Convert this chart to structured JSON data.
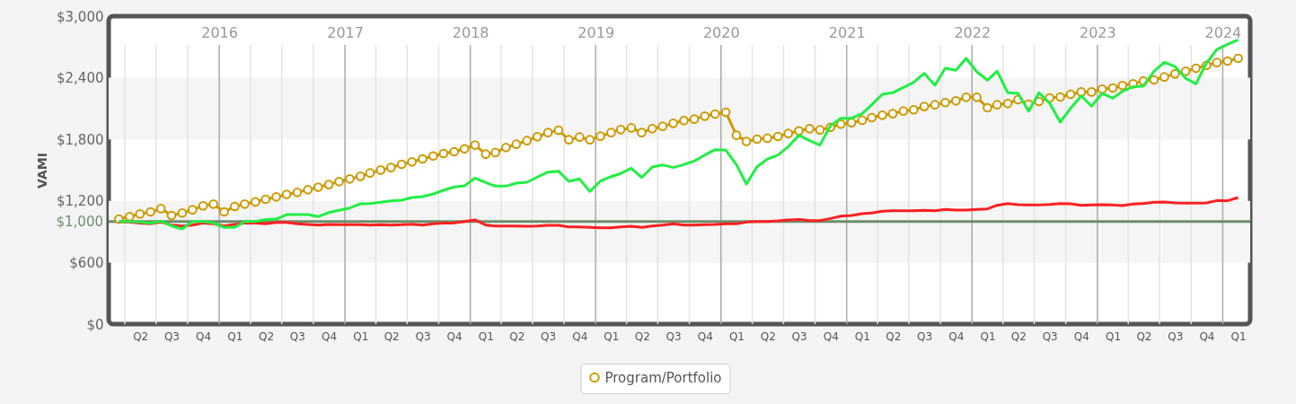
{
  "chart_data": {
    "type": "line",
    "ylabel": "VAMI",
    "legend": "bottom",
    "grid": "x",
    "xlim": [
      "2015-02-13",
      "2024-03-21"
    ],
    "x2lim": [
      "2015-02-13",
      "2024-03-21"
    ],
    "ylim": [
      0,
      3000
    ],
    "yticks": [
      {
        "value": 0,
        "label": "$0"
      },
      {
        "value": 600,
        "label": "$600"
      },
      {
        "value": 1200,
        "label": "$1,200"
      },
      {
        "value": 1800,
        "label": "$1,800"
      },
      {
        "value": 2400,
        "label": "$2,400"
      },
      {
        "value": 3000,
        "label": "$3,000"
      }
    ],
    "xticks": [
      {
        "value": "2015-04-01",
        "label": null
      },
      {
        "value": "2015-07-01",
        "label": null
      },
      {
        "value": "2015-10-01",
        "label": null
      },
      {
        "value": "2016-04-01",
        "label": null
      },
      {
        "value": "2016-07-01",
        "label": null
      },
      {
        "value": "2016-10-01",
        "label": null
      },
      {
        "value": "2017-04-01",
        "label": null
      },
      {
        "value": "2017-07-01",
        "label": null
      },
      {
        "value": "2017-10-01",
        "label": null
      },
      {
        "value": "2018-04-01",
        "label": null
      },
      {
        "value": "2018-07-01",
        "label": null
      },
      {
        "value": "2018-10-01",
        "label": null
      },
      {
        "value": "2019-04-01",
        "label": null
      },
      {
        "value": "2019-07-01",
        "label": null
      },
      {
        "value": "2019-10-01",
        "label": null
      },
      {
        "value": "2020-04-01",
        "label": null
      },
      {
        "value": "2020-07-01",
        "label": null
      },
      {
        "value": "2020-10-01",
        "label": null
      },
      {
        "value": "2021-04-01",
        "label": null
      },
      {
        "value": "2021-07-01",
        "label": null
      },
      {
        "value": "2021-10-01",
        "label": null
      },
      {
        "value": "2022-04-01",
        "label": null
      },
      {
        "value": "2022-07-01",
        "label": null
      },
      {
        "value": "2022-10-01",
        "label": null
      },
      {
        "value": "2023-04-01",
        "label": null
      },
      {
        "value": "2023-07-01",
        "label": null
      },
      {
        "value": "2023-10-01",
        "label": null
      },
      {
        "value": "2015-05-16",
        "label": "Q2"
      },
      {
        "value": "2015-08-15",
        "label": "Q3"
      },
      {
        "value": "2015-11-15",
        "label": "Q4"
      },
      {
        "value": "2016-02-15",
        "label": "Q1"
      },
      {
        "value": "2016-05-16",
        "label": "Q2"
      },
      {
        "value": "2016-08-15",
        "label": "Q3"
      },
      {
        "value": "2016-11-15",
        "label": "Q4"
      },
      {
        "value": "2017-02-15",
        "label": "Q1"
      },
      {
        "value": "2017-05-16",
        "label": "Q2"
      },
      {
        "value": "2017-08-15",
        "label": "Q3"
      },
      {
        "value": "2017-11-15",
        "label": "Q4"
      },
      {
        "value": "2018-02-15",
        "label": "Q1"
      },
      {
        "value": "2018-05-16",
        "label": "Q2"
      },
      {
        "value": "2018-08-15",
        "label": "Q3"
      },
      {
        "value": "2018-11-15",
        "label": "Q4"
      },
      {
        "value": "2019-02-15",
        "label": "Q1"
      },
      {
        "value": "2019-05-16",
        "label": "Q2"
      },
      {
        "value": "2019-08-15",
        "label": "Q3"
      },
      {
        "value": "2019-11-15",
        "label": "Q4"
      },
      {
        "value": "2020-02-15",
        "label": "Q1"
      },
      {
        "value": "2020-05-16",
        "label": "Q2"
      },
      {
        "value": "2020-08-15",
        "label": "Q3"
      },
      {
        "value": "2020-11-15",
        "label": "Q4"
      },
      {
        "value": "2021-02-15",
        "label": "Q1"
      },
      {
        "value": "2021-05-16",
        "label": "Q2"
      },
      {
        "value": "2021-08-15",
        "label": "Q3"
      },
      {
        "value": "2021-11-15",
        "label": "Q4"
      },
      {
        "value": "2022-02-15",
        "label": "Q1"
      },
      {
        "value": "2022-05-16",
        "label": "Q2"
      },
      {
        "value": "2022-08-15",
        "label": "Q3"
      },
      {
        "value": "2022-11-15",
        "label": "Q4"
      },
      {
        "value": "2023-02-15",
        "label": "Q1"
      },
      {
        "value": "2023-05-16",
        "label": "Q2"
      },
      {
        "value": "2023-08-15",
        "label": "Q3"
      },
      {
        "value": "2023-11-15",
        "label": "Q4"
      },
      {
        "value": "2024-02-15",
        "label": "Q1"
      }
    ],
    "x2ticks": [
      {
        "value": "2016-01-01",
        "label": "2016"
      },
      {
        "value": "2017-01-01",
        "label": "2017"
      },
      {
        "value": "2018-01-01",
        "label": "2018"
      },
      {
        "value": "2019-01-01",
        "label": "2019"
      },
      {
        "value": "2020-01-01",
        "label": "2020"
      },
      {
        "value": "2021-01-01",
        "label": "2021"
      },
      {
        "value": "2022-01-01",
        "label": "2022"
      },
      {
        "value": "2023-01-01",
        "label": "2023"
      },
      {
        "value": "2024-01-01",
        "label": "2024"
      }
    ],
    "bands": [
      {
        "axis": "y",
        "from": 600,
        "to": 1200,
        "color": "#f5f5f5"
      },
      {
        "axis": "y",
        "from": 1800,
        "to": 2400,
        "color": "#f5f5f5"
      }
    ],
    "ref_lines": [
      {
        "axis": "y",
        "value": 1000,
        "label": "$1,000",
        "color": "#6b8f6b"
      }
    ],
    "x": [
      "2015-03-15",
      "2015-04-15",
      "2015-05-15",
      "2015-06-15",
      "2015-07-15",
      "2015-08-15",
      "2015-09-15",
      "2015-10-15",
      "2015-11-15",
      "2015-12-15",
      "2016-01-15",
      "2016-02-15",
      "2016-03-15",
      "2016-04-15",
      "2016-05-15",
      "2016-06-15",
      "2016-07-15",
      "2016-08-15",
      "2016-09-15",
      "2016-10-15",
      "2016-11-15",
      "2016-12-15",
      "2017-01-15",
      "2017-02-15",
      "2017-03-15",
      "2017-04-15",
      "2017-05-15",
      "2017-06-15",
      "2017-07-15",
      "2017-08-15",
      "2017-09-15",
      "2017-10-15",
      "2017-11-15",
      "2017-12-15",
      "2018-01-15",
      "2018-02-15",
      "2018-03-15",
      "2018-04-15",
      "2018-05-15",
      "2018-06-15",
      "2018-07-15",
      "2018-08-15",
      "2018-09-15",
      "2018-10-15",
      "2018-11-15",
      "2018-12-15",
      "2019-01-15",
      "2019-02-15",
      "2019-03-15",
      "2019-04-15",
      "2019-05-15",
      "2019-06-15",
      "2019-07-15",
      "2019-08-15",
      "2019-09-15",
      "2019-10-15",
      "2019-11-15",
      "2019-12-15",
      "2020-01-15",
      "2020-02-15",
      "2020-03-15",
      "2020-04-15",
      "2020-05-15",
      "2020-06-15",
      "2020-07-15",
      "2020-08-15",
      "2020-09-15",
      "2020-10-15",
      "2020-11-15",
      "2020-12-15",
      "2021-01-15",
      "2021-02-15",
      "2021-03-15",
      "2021-04-15",
      "2021-05-15",
      "2021-06-15",
      "2021-07-15",
      "2021-08-15",
      "2021-09-15",
      "2021-10-15",
      "2021-11-15",
      "2021-12-15",
      "2022-01-15",
      "2022-02-15",
      "2022-03-15",
      "2022-04-15",
      "2022-05-15",
      "2022-06-15",
      "2022-07-15",
      "2022-08-15",
      "2022-09-15",
      "2022-10-15",
      "2022-11-15",
      "2022-12-15",
      "2023-01-15",
      "2023-02-15",
      "2023-03-15",
      "2023-04-15",
      "2023-05-15",
      "2023-06-15",
      "2023-07-15",
      "2023-08-15",
      "2023-09-15",
      "2023-10-15",
      "2023-11-15",
      "2023-12-15",
      "2024-01-15",
      "2024-02-15"
    ],
    "series": [
      {
        "name": "Program/Portfolio",
        "color": "#cc9900",
        "marker": "circle",
        "values": [
          1023,
          1047,
          1073,
          1093,
          1125,
          1058,
          1082,
          1114,
          1152,
          1169,
          1093,
          1146,
          1169,
          1190,
          1216,
          1239,
          1263,
          1283,
          1309,
          1333,
          1359,
          1388,
          1414,
          1440,
          1472,
          1501,
          1525,
          1557,
          1580,
          1609,
          1638,
          1662,
          1679,
          1708,
          1744,
          1656,
          1671,
          1720,
          1752,
          1787,
          1825,
          1866,
          1889,
          1796,
          1822,
          1796,
          1831,
          1866,
          1895,
          1912,
          1866,
          1904,
          1927,
          1956,
          1983,
          1997,
          2026,
          2047,
          2064,
          1840,
          1779,
          1802,
          1811,
          1828,
          1857,
          1883,
          1904,
          1892,
          1918,
          1948,
          1962,
          1986,
          2012,
          2035,
          2050,
          2076,
          2088,
          2120,
          2137,
          2158,
          2175,
          2210,
          2210,
          2108,
          2137,
          2149,
          2187,
          2143,
          2169,
          2204,
          2213,
          2239,
          2262,
          2262,
          2289,
          2300,
          2324,
          2341,
          2368,
          2379,
          2408,
          2437,
          2463,
          2492,
          2521,
          2548,
          2563,
          2589
        ]
      },
      {
        "color": "#ff2020",
        "marker": "none",
        "values": [
          1000,
          994,
          985,
          977,
          994,
          965,
          956,
          965,
          985,
          977,
          956,
          971,
          985,
          985,
          977,
          991,
          991,
          977,
          971,
          965,
          971,
          968,
          968,
          968,
          965,
          968,
          965,
          968,
          974,
          965,
          977,
          985,
          985,
          1000,
          1015,
          965,
          956,
          956,
          956,
          953,
          956,
          962,
          962,
          947,
          947,
          942,
          939,
          939,
          947,
          953,
          942,
          956,
          965,
          977,
          965,
          965,
          968,
          971,
          977,
          977,
          994,
          1000,
          1000,
          1006,
          1015,
          1020,
          1009,
          1009,
          1029,
          1052,
          1058,
          1076,
          1082,
          1099,
          1105,
          1105,
          1105,
          1108,
          1105,
          1117,
          1111,
          1111,
          1117,
          1122,
          1157,
          1175,
          1163,
          1160,
          1160,
          1166,
          1175,
          1172,
          1157,
          1160,
          1163,
          1160,
          1155,
          1169,
          1175,
          1187,
          1190,
          1181,
          1178,
          1178,
          1181,
          1204,
          1201,
          1233
        ]
      },
      {
        "color": "#22ee44",
        "marker": "none",
        "values": [
          1000,
          1000,
          994,
          982,
          1003,
          956,
          927,
          1000,
          1000,
          985,
          942,
          942,
          1000,
          1000,
          1020,
          1023,
          1067,
          1067,
          1067,
          1047,
          1087,
          1108,
          1131,
          1172,
          1175,
          1187,
          1201,
          1207,
          1233,
          1242,
          1268,
          1303,
          1336,
          1347,
          1423,
          1379,
          1344,
          1344,
          1373,
          1382,
          1432,
          1481,
          1490,
          1391,
          1414,
          1292,
          1393,
          1437,
          1467,
          1519,
          1428,
          1531,
          1551,
          1525,
          1554,
          1589,
          1647,
          1700,
          1694,
          1554,
          1364,
          1533,
          1607,
          1647,
          1729,
          1840,
          1787,
          1744,
          1933,
          2006,
          2006,
          2050,
          2137,
          2239,
          2254,
          2306,
          2355,
          2443,
          2327,
          2493,
          2473,
          2589,
          2458,
          2376,
          2464,
          2254,
          2248,
          2073,
          2254,
          2152,
          1968,
          2102,
          2224,
          2123,
          2248,
          2201,
          2268,
          2312,
          2318,
          2464,
          2551,
          2510,
          2394,
          2341,
          2545,
          2676,
          2726,
          2770
        ]
      }
    ]
  }
}
